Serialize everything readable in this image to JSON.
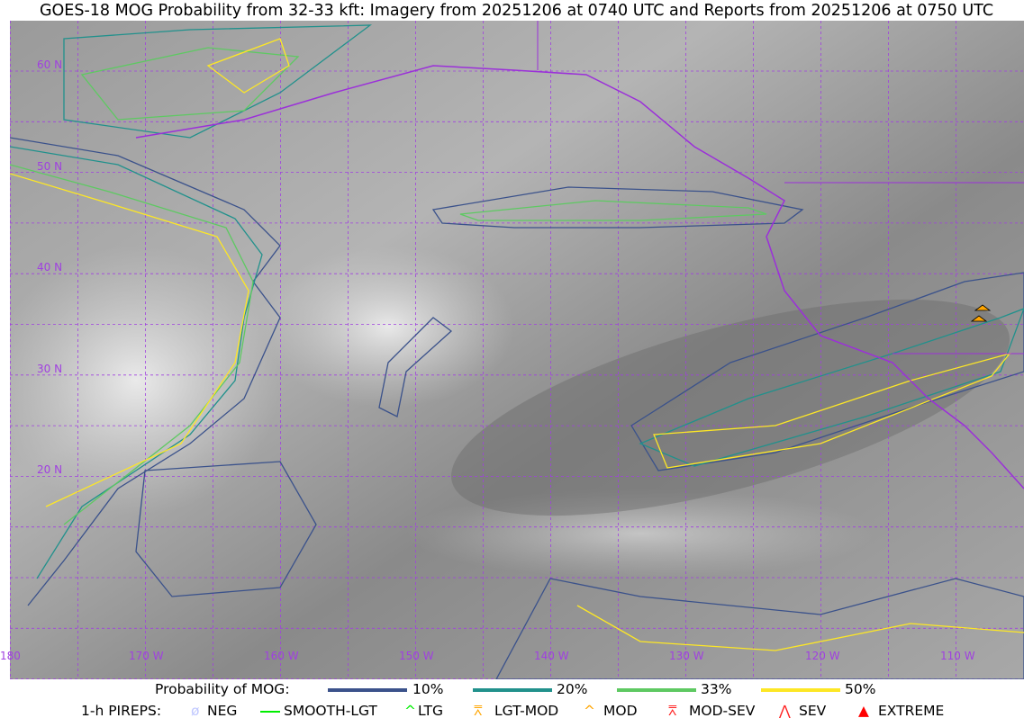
{
  "title": "GOES-18 MOG Probability from 32-33 kft: Imagery from 20251206 at 0740 UTC and Reports from 20251206 at 0750 UTC",
  "map": {
    "lat_labels": [
      "60 N",
      "50 N",
      "40 N",
      "30 N",
      "20 N"
    ],
    "lon_labels": [
      "180",
      "170 W",
      "160 W",
      "150 W",
      "140 W",
      "130 W",
      "120 W",
      "110 W"
    ],
    "grid_color": "#a040e0",
    "coastline_color": "#9b30d9"
  },
  "legend": {
    "probability_title": "Probability of MOG:",
    "levels": [
      {
        "label": "10%",
        "color": "#3b528b"
      },
      {
        "label": "20%",
        "color": "#21918c"
      },
      {
        "label": "33%",
        "color": "#5ec962"
      },
      {
        "label": "50%",
        "color": "#fde725"
      }
    ],
    "pireps_title": "1-h PIREPS:",
    "pireps": [
      {
        "label": "NEG",
        "icon": "slashed-circle-icon",
        "color": "#c0c8ff"
      },
      {
        "label": "SMOOTH-LGT",
        "icon": "dash-icon",
        "color": "#00ee00"
      },
      {
        "label": "LTG",
        "icon": "caret-icon",
        "color": "#00ee00"
      },
      {
        "label": "LGT-MOD",
        "icon": "caret-bar-icon",
        "color": "#ffa500"
      },
      {
        "label": "MOD",
        "icon": "caret-icon",
        "color": "#ffa500"
      },
      {
        "label": "MOD-SEV",
        "icon": "double-caret-bar-icon",
        "color": "#ff2020"
      },
      {
        "label": "SEV",
        "icon": "double-caret-icon",
        "color": "#ff2020"
      },
      {
        "label": "EXTREME",
        "icon": "filled-triangle-icon",
        "color": "#ff0000"
      }
    ]
  }
}
